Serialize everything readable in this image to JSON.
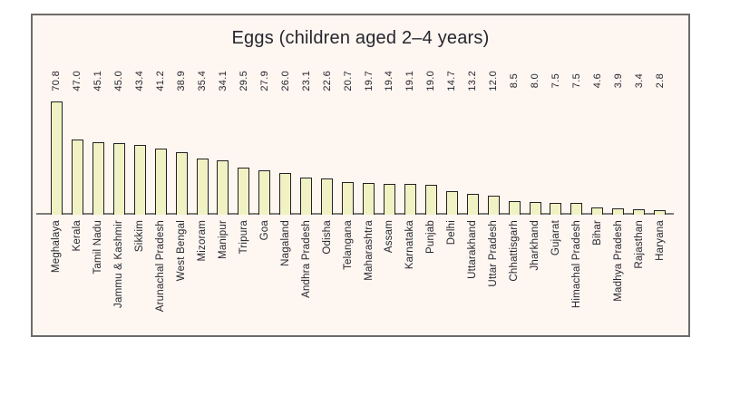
{
  "chart_data": {
    "type": "bar",
    "title": "Eggs (children aged 2–4 years)",
    "categories": [
      "Meghalaya",
      "Kerala",
      "Tamil Nadu",
      "Jammu & Kashmir",
      "Sikkim",
      "Arunachal Pradesh",
      "West Bengal",
      "Mizoram",
      "Manipur",
      "Tripura",
      "Goa",
      "Nagaland",
      "Andhra Pradesh",
      "Odisha",
      "Telangana",
      "Maharashtra",
      "Assam",
      "Karnataka",
      "Punjab",
      "Delhi",
      "Uttarakhand",
      "Uttar Pradesh",
      "Chhattisgarh",
      "Jharkhand",
      "Gujarat",
      "Himachal Pradesh",
      "Bihar",
      "Madhya Pradesh",
      "Rajasthan",
      "Haryana"
    ],
    "values": [
      70.8,
      47.0,
      45.1,
      45.0,
      43.4,
      41.2,
      38.9,
      35.4,
      34.1,
      29.5,
      27.9,
      26.0,
      23.1,
      22.6,
      20.7,
      19.7,
      19.4,
      19.1,
      19.0,
      14.7,
      13.2,
      12.0,
      8.5,
      8.0,
      7.5,
      7.5,
      4.6,
      3.9,
      3.4,
      2.8
    ],
    "value_label_decimals": 1,
    "xlabel": "",
    "ylabel": "",
    "ylim": [
      0,
      70.8
    ],
    "grid": false,
    "legend": null,
    "bar_orientation": "vertical",
    "label_rotation_degrees": 90,
    "colors": {
      "bar_fill": "#F1F2C3",
      "bar_border": "#222222",
      "frame_bg": "#FDF6F1",
      "frame_border": "#6E6B69",
      "axis_line": "#7E7C7A",
      "text": "#26262E"
    }
  }
}
